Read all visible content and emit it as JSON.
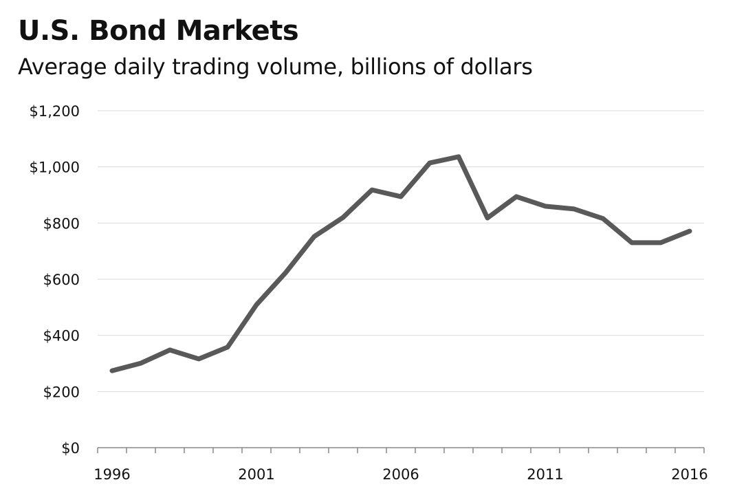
{
  "chart_data": {
    "type": "line",
    "title": "U.S. Bond Markets",
    "subtitle": "Average daily trading volume, billions of dollars",
    "xlabel": "",
    "ylabel": "",
    "x": [
      1996,
      1997,
      1998,
      1999,
      2000,
      2001,
      2002,
      2003,
      2004,
      2005,
      2006,
      2007,
      2008,
      2009,
      2010,
      2011,
      2012,
      2013,
      2014,
      2015,
      2016
    ],
    "values": [
      274,
      301,
      348,
      316,
      358,
      509,
      622,
      752,
      820,
      918,
      894,
      1014,
      1036,
      818,
      894,
      860,
      850,
      816,
      730,
      730,
      771
    ],
    "ylim": [
      0,
      1200
    ],
    "y_ticks": [
      0,
      200,
      400,
      600,
      800,
      1000,
      1200
    ],
    "y_tick_labels": [
      "$0",
      "$200",
      "$400",
      "$600",
      "$800",
      "$1,000",
      "$1,200"
    ],
    "x_tick_labels": [
      "1996",
      "2001",
      "2006",
      "2011",
      "2016"
    ],
    "grid": true,
    "line_color": "#595959",
    "grid_color": "#d9d9d9"
  }
}
